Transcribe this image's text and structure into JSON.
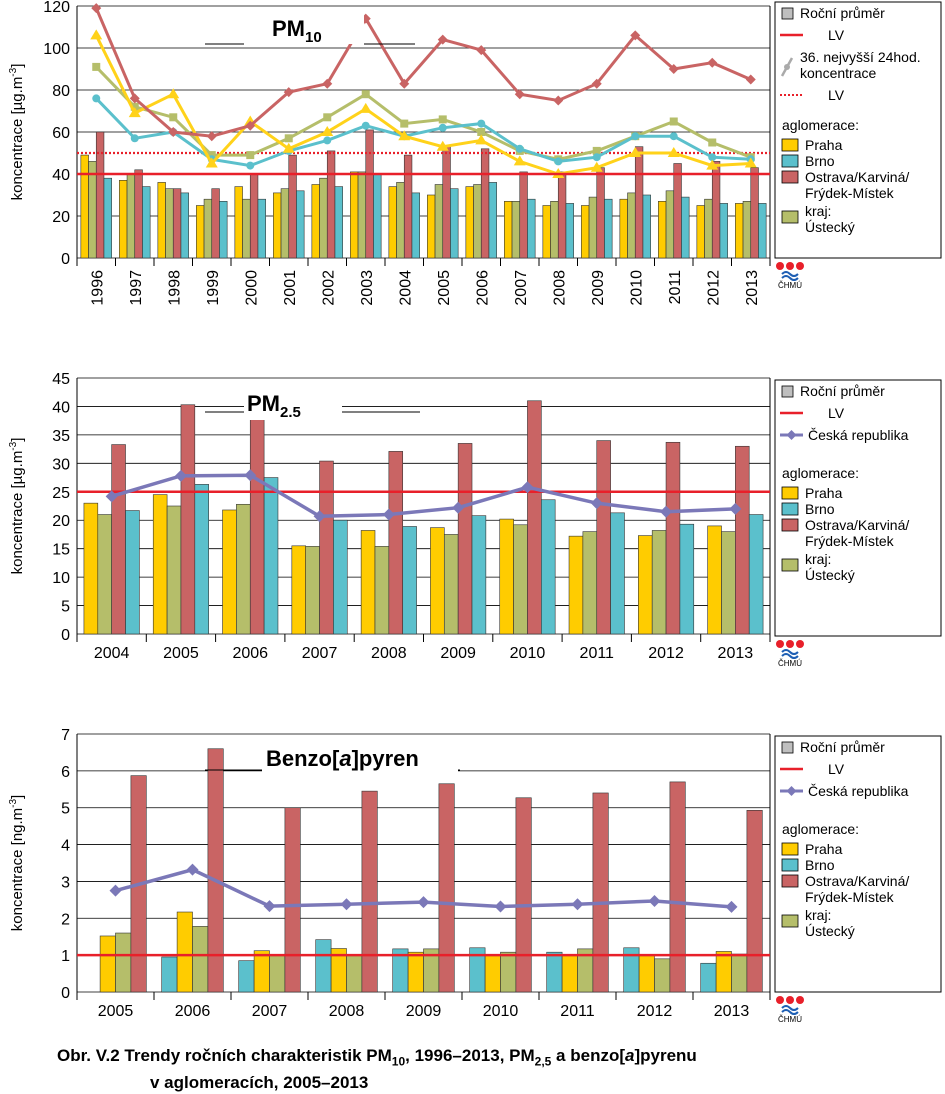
{
  "colors": {
    "praha": "#FFCC00",
    "brno": "#5BC0CC",
    "ostrava": "#C96464",
    "kraj": "#B5BE6A",
    "lv": "#E8202A",
    "cr": "#7B78B8",
    "grid": "#000000"
  },
  "legend": {
    "rocni_prumer": "Roční průměr",
    "lv": "LV",
    "nejvyssi_1": "36. nejvyšší 24hod.",
    "nejvyssi_2": "koncentrace",
    "lv2": "LV",
    "ceska_republika": "Česká republika",
    "aglomerace": "aglomerace:",
    "praha": "Praha",
    "brno": "Brno",
    "ostrava_1": "Ostrava/Karviná/",
    "ostrava_2": "Frýdek-Místek",
    "kraj_1": "kraj:",
    "kraj_2": "Ústecký"
  },
  "logo_text": "ČHMÚ",
  "caption": {
    "line1_a": "Obr. V.2  Trendy ročních charakteristik PM",
    "line1_sub1": "10",
    "line1_b": ", 1996–2013, PM",
    "line1_sub2": "2,5",
    "line1_c": " a benzo[",
    "line1_i": "a",
    "line1_d": "]pyrenu",
    "line2": "v aglomeracích, 2005–2013"
  },
  "chart_data": [
    {
      "type": "bar",
      "title_main": "PM",
      "title_sub": "10",
      "ylabel": "koncentrace [µg.m-3]",
      "ylim": [
        0,
        120
      ],
      "yticks": [
        0,
        20,
        40,
        60,
        80,
        100,
        120
      ],
      "lv": 40,
      "lv_daily": 50,
      "categories": [
        "1996",
        "1997",
        "1998",
        "1999",
        "2000",
        "2001",
        "2002",
        "2003",
        "2004",
        "2005",
        "2006",
        "2007",
        "2008",
        "2009",
        "2010",
        "2011",
        "2012",
        "2013"
      ],
      "series": [
        {
          "name": "Praha",
          "key": "praha",
          "values": [
            49,
            37,
            36,
            25,
            34,
            31,
            35,
            41,
            34,
            30,
            34,
            27,
            25,
            25,
            28,
            27,
            25,
            26
          ]
        },
        {
          "name": "Ústecký",
          "key": "kraj",
          "values": [
            46,
            40,
            33,
            28,
            28,
            33,
            38,
            41,
            36,
            35,
            35,
            27,
            27,
            29,
            31,
            32,
            28,
            27
          ]
        },
        {
          "name": "Ostrava/Karviná/Frýdek-Místek",
          "key": "ostrava",
          "values": [
            60,
            42,
            33,
            33,
            40,
            49,
            51,
            61,
            49,
            53,
            52,
            41,
            41,
            43,
            53,
            45,
            46,
            43
          ]
        },
        {
          "name": "Brno",
          "key": "brno",
          "values": [
            38,
            34,
            31,
            27,
            28,
            32,
            34,
            40,
            31,
            33,
            36,
            28,
            26,
            28,
            30,
            29,
            26,
            26
          ]
        }
      ],
      "daily_lines": [
        {
          "name": "Praha",
          "key": "praha",
          "values": [
            106,
            69,
            78,
            45,
            65,
            52,
            60,
            71,
            58,
            53,
            56,
            46,
            40,
            43,
            50,
            50,
            44,
            45
          ]
        },
        {
          "name": "Brno",
          "key": "brno",
          "values": [
            76,
            57,
            60,
            47,
            44,
            51,
            56,
            63,
            58,
            62,
            64,
            52,
            46,
            48,
            58,
            58,
            48,
            47
          ]
        },
        {
          "name": "Ostrava/Karviná/Frýdek-Místek",
          "key": "ostrava",
          "values": [
            119,
            76,
            60,
            58,
            63,
            79,
            83,
            114,
            83,
            104,
            99,
            78,
            75,
            83,
            106,
            90,
            93,
            85
          ]
        },
        {
          "name": "Ústecký",
          "key": "kraj",
          "values": [
            91,
            72,
            67,
            49,
            49,
            57,
            67,
            78,
            64,
            66,
            60,
            51,
            47,
            51,
            58,
            65,
            55,
            48
          ]
        }
      ]
    },
    {
      "type": "bar",
      "title_main": "PM",
      "title_sub": "2.5",
      "ylabel": "koncentrace [µg.m-3]",
      "ylim": [
        0,
        45
      ],
      "yticks": [
        0,
        5,
        10,
        15,
        20,
        25,
        30,
        35,
        40,
        45
      ],
      "lv": 25,
      "categories": [
        "2004",
        "2005",
        "2006",
        "2007",
        "2008",
        "2009",
        "2010",
        "2011",
        "2012",
        "2013"
      ],
      "series": [
        {
          "name": "Praha",
          "key": "praha",
          "values": [
            23.0,
            24.5,
            21.8,
            15.5,
            18.2,
            18.7,
            20.2,
            17.2,
            17.3,
            19.0
          ]
        },
        {
          "name": "Ústecký",
          "key": "kraj",
          "values": [
            21.0,
            22.5,
            22.8,
            15.4,
            15.4,
            17.5,
            19.2,
            18.0,
            18.2,
            18.0
          ]
        },
        {
          "name": "Ostrava/Karviná/Frýdek-Místek",
          "key": "ostrava",
          "values": [
            33.3,
            40.3,
            40.2,
            30.4,
            32.1,
            33.5,
            41.0,
            34.0,
            33.7,
            33.0
          ]
        },
        {
          "name": "Brno",
          "key": "brno",
          "values": [
            21.7,
            26.3,
            27.5,
            20.0,
            18.9,
            20.8,
            23.6,
            21.3,
            19.3,
            21.0
          ]
        }
      ],
      "cr_line": {
        "name": "Česká republika",
        "values": [
          24.2,
          27.8,
          27.9,
          20.7,
          21.0,
          22.2,
          25.8,
          23.0,
          21.5,
          22.0
        ]
      }
    },
    {
      "type": "bar",
      "title_main": "Benzo[a]pyren",
      "ylabel": "koncentrace [ng.m-3]",
      "ylim": [
        0,
        7
      ],
      "yticks": [
        0,
        1,
        2,
        3,
        4,
        5,
        6,
        7
      ],
      "lv": 1,
      "categories": [
        "2005",
        "2006",
        "2007",
        "2008",
        "2009",
        "2010",
        "2011",
        "2012",
        "2013"
      ],
      "series": [
        {
          "name": "Brno",
          "key": "brno",
          "values": [
            0,
            0.95,
            0.85,
            1.42,
            1.17,
            1.2,
            1.08,
            1.2,
            0.78
          ]
        },
        {
          "name": "Praha",
          "key": "praha",
          "values": [
            1.52,
            2.17,
            1.12,
            1.18,
            1.08,
            1.02,
            1.0,
            1.0,
            1.1
          ]
        },
        {
          "name": "Ústecký",
          "key": "kraj",
          "values": [
            1.6,
            1.78,
            1.02,
            1.02,
            1.17,
            1.08,
            1.17,
            0.9,
            1.03
          ]
        },
        {
          "name": "Ostrava/Karviná/Frýdek-Místek",
          "key": "ostrava",
          "values": [
            5.87,
            6.6,
            5.0,
            5.45,
            5.65,
            5.27,
            5.4,
            5.7,
            4.93
          ]
        }
      ],
      "cr_line": {
        "name": "Česká republika",
        "values": [
          2.75,
          3.32,
          2.33,
          2.38,
          2.44,
          2.32,
          2.38,
          2.47,
          2.31
        ]
      }
    }
  ]
}
